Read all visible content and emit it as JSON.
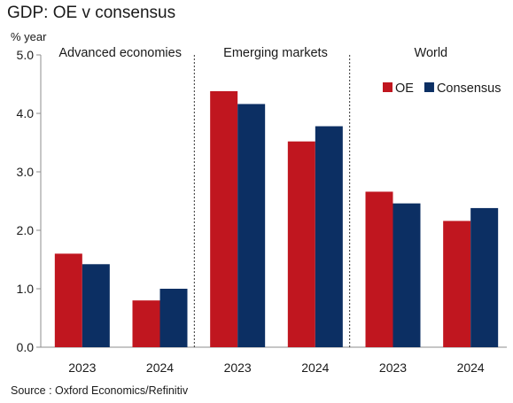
{
  "title": "GDP: OE v consensus",
  "source": "Source : Oxford Economics/Refinitiv",
  "chart_data": {
    "type": "bar",
    "ylabel": "% year",
    "ylim": [
      0,
      5
    ],
    "yticks": [
      "0.0",
      "1.0",
      "2.0",
      "3.0",
      "4.0",
      "5.0"
    ],
    "grid": false,
    "legend_position": "top-right",
    "groups": [
      {
        "label": "Advanced economies",
        "categories": [
          "2023",
          "2024"
        ]
      },
      {
        "label": "Emerging markets",
        "categories": [
          "2023",
          "2024"
        ]
      },
      {
        "label": "World",
        "categories": [
          "2023",
          "2024"
        ]
      }
    ],
    "series": [
      {
        "name": "OE",
        "color": "#c0161f",
        "values": [
          1.6,
          0.8,
          4.38,
          3.52,
          2.66,
          2.16
        ]
      },
      {
        "name": "Consensus",
        "color": "#0c2f63",
        "values": [
          1.42,
          1.0,
          4.16,
          3.78,
          2.46,
          2.38
        ]
      }
    ]
  }
}
